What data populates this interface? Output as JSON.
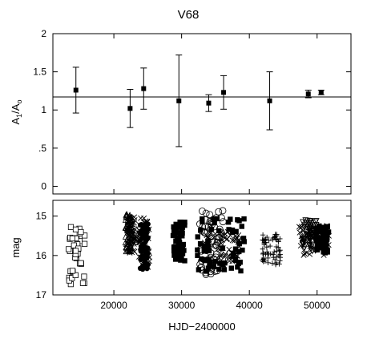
{
  "chart_data": [
    {
      "type": "scatter",
      "title": "V68",
      "ylabel_main": "A",
      "ylabel_sub1": "1",
      "ylabel_sep": "/A",
      "ylabel_sub2": "o",
      "xlim": [
        11000,
        55000
      ],
      "ylim": [
        -0.1,
        2.0
      ],
      "y_ticks": [
        0,
        0.5,
        1,
        1.5,
        2
      ],
      "y_tick_labels": [
        "0",
        ".5",
        "1",
        "1.5",
        "2"
      ],
      "reference_line": 1.17,
      "series": [
        {
          "points": [
            {
              "x": 14400,
              "y": 1.26,
              "lo": 0.96,
              "hi": 1.56
            },
            {
              "x": 22400,
              "y": 1.02,
              "lo": 0.77,
              "hi": 1.27
            },
            {
              "x": 24400,
              "y": 1.28,
              "lo": 1.01,
              "hi": 1.55
            },
            {
              "x": 29600,
              "y": 1.12,
              "lo": 0.52,
              "hi": 1.72
            },
            {
              "x": 34000,
              "y": 1.09,
              "lo": 0.98,
              "hi": 1.2
            },
            {
              "x": 36200,
              "y": 1.23,
              "lo": 1.01,
              "hi": 1.45
            },
            {
              "x": 43000,
              "y": 1.12,
              "lo": 0.74,
              "hi": 1.5
            },
            {
              "x": 48700,
              "y": 1.21,
              "lo": 1.16,
              "hi": 1.26
            },
            {
              "x": 50600,
              "y": 1.23,
              "lo": 1.2,
              "hi": 1.26
            }
          ]
        }
      ]
    },
    {
      "type": "scatter",
      "ylabel": "mag",
      "xlabel": "HJD−2400000",
      "xlim": [
        11000,
        55000
      ],
      "ylim": [
        17.0,
        14.6
      ],
      "y_inverted": true,
      "x_ticks": [
        20000,
        30000,
        40000,
        50000
      ],
      "x_tick_labels": [
        "20000",
        "30000",
        "40000",
        "50000"
      ],
      "y_ticks": [
        15,
        16,
        17
      ],
      "y_tick_labels": [
        "15",
        "16",
        "17"
      ],
      "series": [
        {
          "marker": "open-square",
          "x_range": [
            13200,
            15800
          ],
          "y_range": [
            15.2,
            16.75
          ]
        },
        {
          "marker": "open-triangle",
          "x_range": [
            21700,
            22900
          ],
          "y_range": [
            14.95,
            15.9
          ]
        },
        {
          "marker": "cross",
          "x_range": [
            21900,
            23200
          ],
          "y_range": [
            15.0,
            15.95
          ]
        },
        {
          "marker": "cross",
          "x_range": [
            23700,
            25300
          ],
          "y_range": [
            15.05,
            16.3
          ]
        },
        {
          "marker": "filled-circle",
          "x_range": [
            23900,
            25100
          ],
          "y_range": [
            15.2,
            16.35
          ]
        },
        {
          "marker": "filled-square",
          "x_range": [
            28700,
            30500
          ],
          "y_range": [
            15.15,
            16.15
          ]
        },
        {
          "marker": "open-circle",
          "x_range": [
            32600,
            36200
          ],
          "y_range": [
            14.85,
            16.5
          ]
        },
        {
          "marker": "filled-square",
          "x_range": [
            32300,
            39300
          ],
          "y_range": [
            15.05,
            16.45
          ]
        },
        {
          "marker": "cross",
          "x_range": [
            33300,
            38600
          ],
          "y_range": [
            15.4,
            16.2
          ]
        },
        {
          "marker": "plus",
          "x_range": [
            41900,
            44600
          ],
          "y_range": [
            15.45,
            16.25
          ]
        },
        {
          "marker": "cross",
          "x_range": [
            47300,
            51800
          ],
          "y_range": [
            15.25,
            16.0
          ]
        },
        {
          "marker": "open-inverted-triangle",
          "x_range": [
            47800,
            49900
          ],
          "y_range": [
            15.1,
            15.9
          ]
        },
        {
          "marker": "filled-square",
          "x_range": [
            49800,
            51700
          ],
          "y_range": [
            15.25,
            15.95
          ]
        }
      ]
    }
  ]
}
